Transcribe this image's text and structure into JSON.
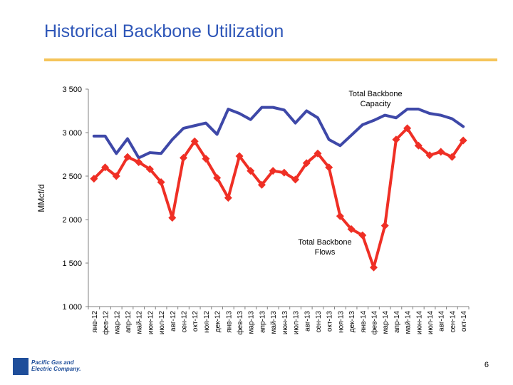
{
  "slide": {
    "title": "Historical Backbone Utilization",
    "page_number": "6",
    "logo": {
      "icon": "pge-logo-icon",
      "line1": "Pacific Gas and",
      "line2": "Electric Company."
    }
  },
  "colors": {
    "title": "#2e56b8",
    "capacity_line": "#3e48a8",
    "flows_line": "#ef2f25",
    "axis": "#808080",
    "accent_rule": "#f5c45a"
  },
  "chart_data": {
    "type": "line",
    "title": "",
    "ylabel": "MMcf/d",
    "xlabel": "",
    "ylim": [
      1000,
      3500
    ],
    "yticks": [
      1000,
      1500,
      2000,
      2500,
      3000,
      3500
    ],
    "ytick_labels": [
      "1 000",
      "1 500",
      "2 000",
      "2 500",
      "3 000",
      "3 500"
    ],
    "grid": false,
    "categories": [
      "янв-12",
      "фев-12",
      "мар-12",
      "апр-12",
      "май-12",
      "июн-12",
      "июл-12",
      "авг-12",
      "сен-12",
      "окт-12",
      "ноя-12",
      "дек-12",
      "янв-13",
      "фев-13",
      "мар-13",
      "апр-13",
      "май-13",
      "июн-13",
      "июл-13",
      "авг-13",
      "сен-13",
      "окт-13",
      "ноя-13",
      "дек-13",
      "янв-14",
      "фев-14",
      "мар-14",
      "апр-14",
      "май-14",
      "июн-14",
      "июл-14",
      "авг-14",
      "сен-14",
      "окт-14"
    ],
    "series": [
      {
        "name": "Total Backbone Capacity",
        "annotation": [
          "Total Backbone",
          "Capacity"
        ],
        "marker": "none",
        "values": [
          2960,
          2960,
          2760,
          2930,
          2710,
          2770,
          2760,
          2920,
          3050,
          3080,
          3110,
          2980,
          3270,
          3220,
          3150,
          3290,
          3290,
          3260,
          3110,
          3250,
          3170,
          2920,
          2850,
          2970,
          3090,
          3140,
          3200,
          3170,
          3270,
          3270,
          3220,
          3200,
          3160,
          3070
        ]
      },
      {
        "name": "Total Backbone Flows",
        "annotation": [
          "Total Backbone",
          "Flows"
        ],
        "marker": "diamond",
        "values": [
          2470,
          2600,
          2500,
          2720,
          2660,
          2580,
          2430,
          2020,
          2710,
          2900,
          2700,
          2480,
          2250,
          2730,
          2560,
          2400,
          2560,
          2540,
          2460,
          2650,
          2760,
          2600,
          2040,
          1890,
          1820,
          1450,
          1930,
          2920,
          3050,
          2850,
          2740,
          2780,
          2720,
          2910
        ]
      }
    ]
  }
}
